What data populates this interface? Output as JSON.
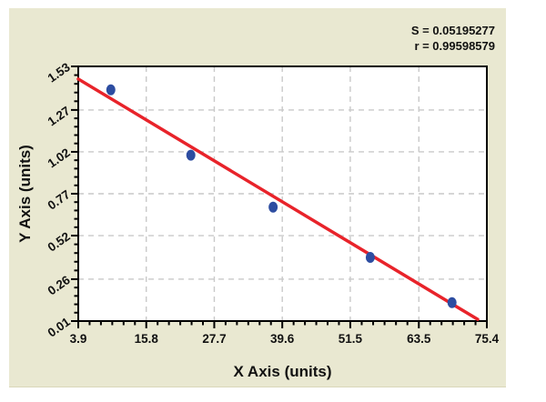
{
  "stats": {
    "s": "S = 0.05195277",
    "r": "r = 0.99598579"
  },
  "chart_data": {
    "type": "scatter",
    "title": "",
    "xlabel": "X Axis (units)",
    "ylabel": "Y Axis (units)",
    "xlim": [
      3.9,
      75.4
    ],
    "ylim": [
      0.01,
      1.53
    ],
    "x_ticks": [
      3.9,
      15.8,
      27.7,
      39.6,
      51.5,
      63.5,
      75.4
    ],
    "x_tick_labels": [
      "3.9",
      "15.8",
      "27.7",
      "39.6",
      "51.5",
      "63.5",
      "75.4"
    ],
    "y_ticks": [
      0.01,
      0.26,
      0.52,
      0.77,
      1.02,
      1.27,
      1.53
    ],
    "y_tick_labels": [
      "0.01",
      "0.26",
      "0.52",
      "0.77",
      "1.02",
      "1.27",
      "1.53"
    ],
    "x_minor_divisions": 6,
    "y_minor_divisions": 5,
    "grid": "dashed gray on major ticks",
    "legend": "none",
    "points": [
      {
        "x": 9.6,
        "y": 1.39
      },
      {
        "x": 23.6,
        "y": 1.0
      },
      {
        "x": 38.0,
        "y": 0.69
      },
      {
        "x": 55.0,
        "y": 0.39
      },
      {
        "x": 69.3,
        "y": 0.12
      }
    ],
    "regression_line": {
      "x1": 3.9,
      "y1": 1.455,
      "x2": 73.8,
      "y2": 0.02
    },
    "annotations": [
      "S = 0.05195277",
      "r = 0.99598579"
    ],
    "colors": {
      "panel_bg": "#e9e8d1",
      "plot_bg": "#ffffff",
      "axis": "#000000",
      "grid": "#c9c9c9",
      "point": "#2d4da1",
      "line": "#e8232a",
      "text": "#111111"
    }
  }
}
